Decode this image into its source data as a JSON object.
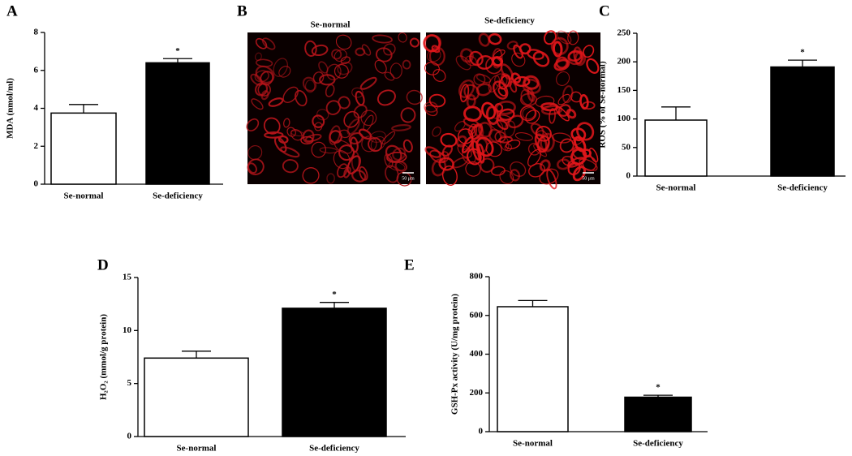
{
  "chart_data": [
    {
      "type": "bar",
      "panel": "A",
      "ylabel": "MDA (nmol/ml)",
      "categories": [
        "Se-normal",
        "Se-deficiency"
      ],
      "values": [
        3.75,
        6.4
      ],
      "errors": [
        0.45,
        0.22
      ],
      "colors": [
        "#ffffff",
        "#000000"
      ],
      "annotations": [
        null,
        "*"
      ],
      "ylim": [
        0,
        8
      ],
      "yticks": [
        0,
        2,
        4,
        6,
        8
      ]
    },
    {
      "type": "bar",
      "panel": "C",
      "ylabel": "ROS (% of Se-normal)",
      "categories": [
        "Se-normal",
        "Se-deficiency"
      ],
      "values": [
        98,
        191
      ],
      "errors": [
        23,
        12
      ],
      "colors": [
        "#ffffff",
        "#000000"
      ],
      "annotations": [
        null,
        "*"
      ],
      "ylim": [
        0,
        250
      ],
      "yticks": [
        0,
        50,
        100,
        150,
        200,
        250
      ]
    },
    {
      "type": "bar",
      "panel": "D",
      "ylabel": "H₂O₂ (mmol/g protein)",
      "categories": [
        "Se-normal",
        "Se-deficiency"
      ],
      "values": [
        7.4,
        12.1
      ],
      "errors": [
        0.65,
        0.55
      ],
      "colors": [
        "#ffffff",
        "#000000"
      ],
      "annotations": [
        null,
        "*"
      ],
      "ylim": [
        0,
        15
      ],
      "yticks": [
        0,
        5,
        10,
        15
      ]
    },
    {
      "type": "bar",
      "panel": "E",
      "ylabel": "GSH-Px activity (U/mg protein)",
      "categories": [
        "Se-normal",
        "Se-deficiency"
      ],
      "values": [
        645,
        178
      ],
      "errors": [
        32,
        10
      ],
      "colors": [
        "#ffffff",
        "#000000"
      ],
      "annotations": [
        null,
        "*"
      ],
      "ylim": [
        0,
        800
      ],
      "yticks": [
        0,
        200,
        400,
        600,
        800
      ]
    }
  ],
  "panel_b": {
    "panel": "B",
    "images": [
      {
        "title": "Se-normal",
        "scale": "50 μm"
      },
      {
        "title": "Se-deficiency",
        "scale": "50 μm"
      }
    ]
  }
}
